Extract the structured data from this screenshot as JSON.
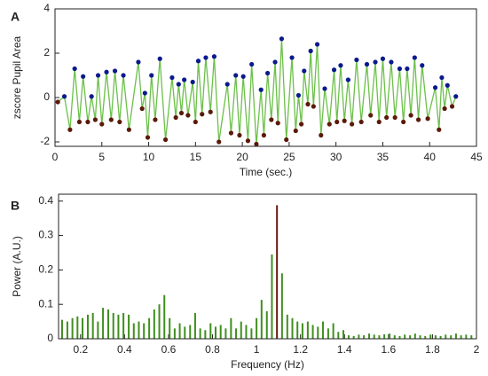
{
  "chart_data": [
    {
      "type": "line",
      "panel_label": "A",
      "xlabel": "Time (sec.)",
      "ylabel": "zscore Pupil Area",
      "xlim": [
        0,
        45
      ],
      "xticks": [
        0,
        5,
        10,
        15,
        20,
        25,
        30,
        35,
        40,
        45
      ],
      "ylim": [
        -2.2,
        4
      ],
      "yticks": [
        -2,
        0,
        2,
        4
      ],
      "line_color": "#6cc04a",
      "peak_color": "#0a1a8c",
      "trough_color": "#5a1a0a",
      "x": [
        0.3,
        1.0,
        1.6,
        2.1,
        2.6,
        3.0,
        3.5,
        3.9,
        4.3,
        4.6,
        5.0,
        5.5,
        6.0,
        6.4,
        6.9,
        7.3,
        7.9,
        8.9,
        9.3,
        9.6,
        9.9,
        10.3,
        10.7,
        11.2,
        11.8,
        12.5,
        12.9,
        13.2,
        13.5,
        13.8,
        14.2,
        14.7,
        15.0,
        15.3,
        15.7,
        16.1,
        16.6,
        17.0,
        17.5,
        18.4,
        18.8,
        19.3,
        19.7,
        20.1,
        20.6,
        21.0,
        21.5,
        22.0,
        22.3,
        22.7,
        23.1,
        23.5,
        23.8,
        24.2,
        24.7,
        25.3,
        25.7,
        26.0,
        26.3,
        26.6,
        27.0,
        27.3,
        27.6,
        28.0,
        28.4,
        28.8,
        29.3,
        29.8,
        30.1,
        30.5,
        30.9,
        31.3,
        31.7,
        32.2,
        32.7,
        33.3,
        33.7,
        34.2,
        34.6,
        35.0,
        35.4,
        35.9,
        36.3,
        36.8,
        37.2,
        37.6,
        38.0,
        38.4,
        38.8,
        39.2,
        39.8,
        40.6,
        41.0,
        41.3,
        41.6,
        41.9,
        42.4,
        42.8
      ],
      "values": [
        -0.2,
        0.05,
        -1.45,
        1.3,
        -1.1,
        0.95,
        -1.1,
        0.05,
        -1.0,
        1.0,
        -1.2,
        1.15,
        -1.0,
        1.2,
        -1.1,
        1.0,
        -1.45,
        1.6,
        -0.5,
        0.2,
        -1.8,
        1.0,
        -1.0,
        1.75,
        -1.9,
        0.9,
        -0.9,
        0.6,
        -0.7,
        0.8,
        -0.8,
        0.7,
        -1.1,
        1.65,
        -0.75,
        1.8,
        -0.65,
        1.85,
        -2.0,
        0.6,
        -1.6,
        1.0,
        -1.7,
        0.95,
        -1.95,
        1.5,
        -2.1,
        0.35,
        -1.7,
        1.1,
        -1.0,
        1.6,
        -1.15,
        2.65,
        -1.9,
        1.8,
        -1.5,
        0.1,
        -1.2,
        1.2,
        -0.3,
        2.1,
        -0.4,
        2.4,
        -1.7,
        0.4,
        -1.2,
        1.25,
        -1.1,
        1.45,
        -1.05,
        0.8,
        -1.2,
        1.7,
        -1.1,
        1.5,
        -0.8,
        1.6,
        -1.1,
        1.75,
        -0.9,
        1.6,
        -0.9,
        1.3,
        -1.1,
        1.3,
        -0.8,
        1.8,
        -1.0,
        1.45,
        -0.95,
        0.45,
        -1.45,
        0.9,
        -0.5,
        0.55,
        -0.4,
        0.05
      ]
    },
    {
      "type": "bar",
      "panel_label": "B",
      "xlabel": "Frequency (Hz)",
      "ylabel": "Power (A.U.)",
      "xlim": [
        0.1,
        2
      ],
      "xticks": [
        0.2,
        0.4,
        0.6,
        0.8,
        1,
        1.2,
        1.4,
        1.6,
        1.8,
        2
      ],
      "ylim": [
        0,
        0.42
      ],
      "yticks": [
        0,
        0.1,
        0.2,
        0.3,
        0.4
      ],
      "color": "#3f8f1f",
      "peak_color": "#6b1a10",
      "x": [
        0.116,
        0.14,
        0.163,
        0.186,
        0.209,
        0.233,
        0.256,
        0.279,
        0.302,
        0.326,
        0.349,
        0.372,
        0.395,
        0.419,
        0.442,
        0.465,
        0.488,
        0.512,
        0.535,
        0.558,
        0.581,
        0.605,
        0.628,
        0.651,
        0.674,
        0.698,
        0.721,
        0.744,
        0.767,
        0.791,
        0.814,
        0.837,
        0.86,
        0.884,
        0.907,
        0.93,
        0.953,
        0.977,
        1.0,
        1.023,
        1.047,
        1.07,
        1.093,
        1.116,
        1.14,
        1.163,
        1.186,
        1.209,
        1.233,
        1.256,
        1.279,
        1.302,
        1.326,
        1.349,
        1.372,
        1.395,
        1.419,
        1.442,
        1.465,
        1.488,
        1.512,
        1.535,
        1.558,
        1.581,
        1.605,
        1.628,
        1.651,
        1.674,
        1.698,
        1.721,
        1.744,
        1.767,
        1.791,
        1.814,
        1.837,
        1.86,
        1.884,
        1.907,
        1.93,
        1.953,
        1.977
      ],
      "values": [
        0.055,
        0.05,
        0.06,
        0.065,
        0.06,
        0.07,
        0.075,
        0.05,
        0.09,
        0.085,
        0.075,
        0.07,
        0.075,
        0.07,
        0.045,
        0.05,
        0.045,
        0.06,
        0.085,
        0.1,
        0.127,
        0.06,
        0.03,
        0.045,
        0.035,
        0.04,
        0.075,
        0.03,
        0.025,
        0.045,
        0.035,
        0.04,
        0.03,
        0.06,
        0.03,
        0.05,
        0.04,
        0.03,
        0.06,
        0.113,
        0.08,
        0.245,
        0.388,
        0.19,
        0.07,
        0.06,
        0.05,
        0.045,
        0.05,
        0.04,
        0.035,
        0.05,
        0.03,
        0.045,
        0.02,
        0.025,
        0.01,
        0.008,
        0.012,
        0.01,
        0.015,
        0.012,
        0.01,
        0.013,
        0.015,
        0.01,
        0.008,
        0.012,
        0.01,
        0.015,
        0.01,
        0.008,
        0.012,
        0.01,
        0.008,
        0.012,
        0.01,
        0.015,
        0.01,
        0.012,
        0.01
      ]
    }
  ]
}
